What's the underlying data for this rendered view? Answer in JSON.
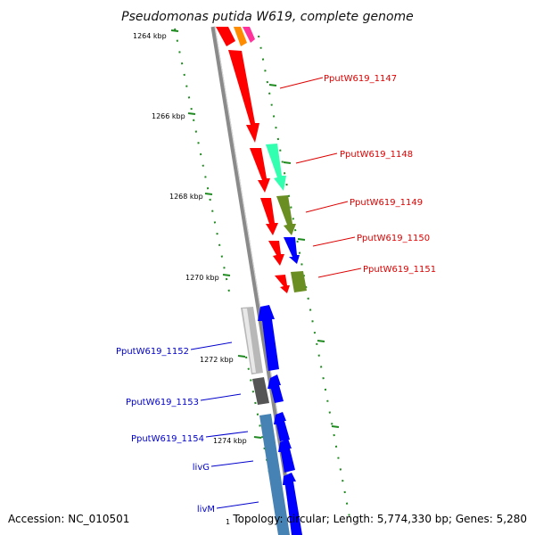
{
  "title": "Pseudomonas putida W619, complete genome",
  "footer": {
    "accession": "Accession: NC_010501",
    "topology": "Topology: circular; Length: 5,774,330 bp; Genes: 5,280",
    "partial_tick": "1"
  },
  "ticks": [
    "1264 kbp",
    "1266 kbp",
    "1268 kbp",
    "1270 kbp",
    "1272 kbp",
    "1274 kbp"
  ],
  "colors": {
    "forward_label": "#dd0000",
    "reverse_label": "#0000cc",
    "backbone": "#8a8a8a",
    "tick_ring": "#1f8a1f"
  },
  "forward_genes": [
    {
      "name": "PputW619_1147",
      "color": "#ff0000"
    },
    {
      "name": "PputW619_1148",
      "color": "#33ffb0"
    },
    {
      "name": "PputW619_1149",
      "color": "#6b8e23"
    },
    {
      "name": "PputW619_1150",
      "color": "#0000ff"
    },
    {
      "name": "PputW619_1151",
      "color": "#6b8e23"
    }
  ],
  "reverse_genes": [
    {
      "name": "PputW619_1152",
      "color": "#b8b8b8"
    },
    {
      "name": "PputW619_1153",
      "color": "#555555"
    },
    {
      "name": "PputW619_1154",
      "color": "#4682b4"
    },
    {
      "name": "livG",
      "color": "#0000ff"
    },
    {
      "name": "livM",
      "color": "#0000ff"
    }
  ]
}
